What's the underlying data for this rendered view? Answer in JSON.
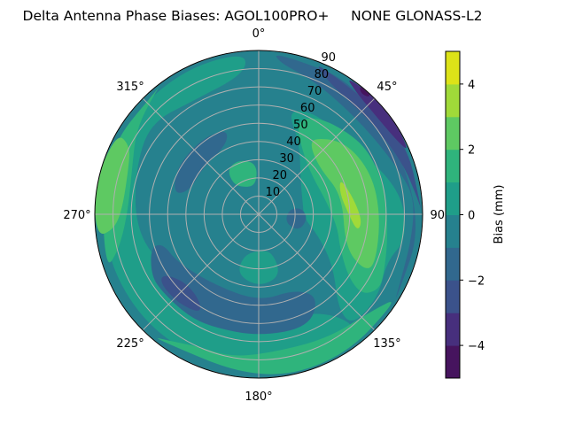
{
  "chart_data": {
    "type": "polar-contour",
    "title": "Delta Antenna Phase Biases: AGOL100PRO+     NONE GLONASS-L2",
    "angular_axis": {
      "direction": "clockwise",
      "zero": "north",
      "tick_labels": [
        "0°",
        "45°",
        "90°",
        "135°",
        "180°",
        "225°",
        "270°",
        "315°"
      ],
      "ticks": [
        0,
        45,
        90,
        135,
        180,
        225,
        270,
        315
      ]
    },
    "radial_axis": {
      "range": [
        0,
        90
      ],
      "ticks": [
        10,
        20,
        30,
        40,
        50,
        60,
        70,
        80,
        90
      ],
      "tick_labels": [
        "10",
        "20",
        "30",
        "40",
        "50",
        "60",
        "70",
        "80",
        "90"
      ]
    },
    "grid": true,
    "colorbar": {
      "label": "Bias (mm)",
      "levels": [
        -5,
        -4,
        -3,
        -2,
        -1,
        0,
        1,
        2,
        3,
        4,
        5
      ],
      "ticks": [
        -4,
        -2,
        0,
        2,
        4
      ],
      "tick_labels": [
        "−4",
        "−2",
        "0",
        "2",
        "4"
      ],
      "colormap": "viridis",
      "colors": [
        "#46145e",
        "#472f7d",
        "#3b528b",
        "#31688e",
        "#26818e",
        "#1f9e89",
        "#2fb47c",
        "#5ec962",
        "#a0da39",
        "#dde318"
      ]
    },
    "background_value": -0.5,
    "regions": [
      {
        "value": 0.5,
        "points": [
          [
            140,
            90
          ],
          [
            180,
            90
          ],
          [
            220,
            90
          ],
          [
            260,
            90
          ],
          [
            300,
            90
          ],
          [
            330,
            90
          ],
          [
            355,
            90
          ],
          [
            355,
            78
          ],
          [
            330,
            72
          ],
          [
            310,
            78
          ],
          [
            290,
            72
          ],
          [
            265,
            68
          ],
          [
            245,
            62
          ],
          [
            225,
            50
          ],
          [
            205,
            52
          ],
          [
            185,
            62
          ],
          [
            165,
            60
          ],
          [
            150,
            62
          ],
          [
            140,
            75
          ]
        ]
      },
      {
        "value": 0.5,
        "points": [
          [
            15,
            60
          ],
          [
            30,
            45
          ],
          [
            50,
            30
          ],
          [
            75,
            25
          ],
          [
            95,
            25
          ],
          [
            110,
            35
          ],
          [
            125,
            50
          ],
          [
            140,
            68
          ],
          [
            140,
            80
          ],
          [
            125,
            80
          ],
          [
            110,
            75
          ],
          [
            100,
            82
          ],
          [
            85,
            80
          ],
          [
            70,
            72
          ],
          [
            50,
            62
          ],
          [
            30,
            64
          ]
        ]
      },
      {
        "value": 1.5,
        "points": [
          [
            22,
            55
          ],
          [
            35,
            42
          ],
          [
            55,
            36
          ],
          [
            80,
            38
          ],
          [
            100,
            44
          ],
          [
            112,
            48
          ],
          [
            125,
            60
          ],
          [
            128,
            72
          ],
          [
            122,
            78
          ],
          [
            115,
            76
          ],
          [
            100,
            72
          ],
          [
            80,
            71
          ],
          [
            60,
            70
          ],
          [
            45,
            66
          ],
          [
            30,
            62
          ]
        ]
      },
      {
        "value": 1.5,
        "points": [
          [
            120,
            90
          ],
          [
            130,
            82
          ],
          [
            150,
            78
          ],
          [
            170,
            76
          ],
          [
            190,
            80
          ],
          [
            205,
            80
          ],
          [
            215,
            85
          ],
          [
            222,
            90
          ],
          [
            180,
            92
          ],
          [
            150,
            92
          ]
        ]
      },
      {
        "value": 1.5,
        "points": [
          [
            250,
            90
          ],
          [
            255,
            80
          ],
          [
            270,
            72
          ],
          [
            290,
            74
          ],
          [
            305,
            82
          ],
          [
            320,
            88
          ],
          [
            325,
            90
          ],
          [
            290,
            92
          ]
        ]
      },
      {
        "value": 2.5,
        "points": [
          [
            262,
            90
          ],
          [
            264,
            80
          ],
          [
            272,
            75
          ],
          [
            290,
            76
          ],
          [
            298,
            80
          ],
          [
            300,
            90
          ],
          [
            280,
            92
          ]
        ]
      },
      {
        "value": 2.5,
        "points": [
          [
            36,
            52
          ],
          [
            50,
            62
          ],
          [
            70,
            66
          ],
          [
            91,
            67
          ],
          [
            114,
            70
          ],
          [
            118,
            65
          ],
          [
            111,
            51
          ],
          [
            77,
            47
          ],
          [
            53,
            42
          ],
          [
            37,
            47
          ]
        ]
      },
      {
        "value": 3.5,
        "points": [
          [
            66,
            49
          ],
          [
            81,
            53
          ],
          [
            94,
            57
          ],
          [
            100,
            55
          ],
          [
            89,
            49
          ],
          [
            75,
            46
          ]
        ]
      },
      {
        "value": -1.5,
        "points": [
          [
            5,
            90
          ],
          [
            8,
            84
          ],
          [
            20,
            80
          ],
          [
            35,
            76
          ],
          [
            55,
            76
          ],
          [
            75,
            82
          ],
          [
            85,
            86
          ],
          [
            100,
            85
          ],
          [
            115,
            86
          ],
          [
            125,
            90
          ],
          [
            90,
            92
          ],
          [
            40,
            92
          ]
        ]
      },
      {
        "value": -2.5,
        "points": [
          [
            20,
            90
          ],
          [
            25,
            84
          ],
          [
            35,
            80
          ],
          [
            50,
            80
          ],
          [
            70,
            84
          ],
          [
            85,
            88
          ],
          [
            90,
            90
          ],
          [
            60,
            92
          ]
        ]
      },
      {
        "value": -3.5,
        "points": [
          [
            32,
            90
          ],
          [
            38,
            86
          ],
          [
            50,
            84
          ],
          [
            62,
            86
          ],
          [
            68,
            90
          ],
          [
            50,
            92
          ]
        ]
      },
      {
        "value": -4.5,
        "points": [
          [
            38,
            90
          ],
          [
            40,
            87
          ],
          [
            43,
            88
          ],
          [
            43,
            90
          ]
        ]
      },
      {
        "value": -1.5,
        "points": [
          [
            283,
            48
          ],
          [
            300,
            52
          ],
          [
            323,
            52
          ],
          [
            340,
            50
          ],
          [
            335,
            42
          ],
          [
            310,
            40
          ],
          [
            289,
            40
          ]
        ]
      },
      {
        "value": -1.5,
        "points": [
          [
            253,
            62
          ],
          [
            240,
            68
          ],
          [
            231,
            68
          ],
          [
            215,
            68
          ],
          [
            202,
            67
          ],
          [
            180,
            67
          ],
          [
            156,
            68
          ],
          [
            144,
            56
          ],
          [
            154,
            46
          ],
          [
            180,
            48
          ],
          [
            214,
            46
          ],
          [
            240,
            52
          ],
          [
            253,
            55
          ]
        ]
      },
      {
        "value": -2.5,
        "points": [
          [
            238,
            62
          ],
          [
            228,
            55
          ],
          [
            215,
            57
          ],
          [
            210,
            63
          ],
          [
            222,
            66
          ],
          [
            235,
            66
          ]
        ]
      },
      {
        "value": -1.5,
        "points": [
          [
            80,
            18
          ],
          [
            95,
            15
          ],
          [
            110,
            17
          ],
          [
            112,
            24
          ],
          [
            95,
            27
          ],
          [
            82,
            24
          ]
        ]
      },
      {
        "value": 1.5,
        "points": [
          [
            320,
            22
          ],
          [
            330,
            17
          ],
          [
            355,
            16
          ],
          [
            358,
            28
          ],
          [
            340,
            32
          ],
          [
            325,
            30
          ]
        ]
      },
      {
        "value": 0.5,
        "points": [
          [
            160,
            22
          ],
          [
            180,
            20
          ],
          [
            200,
            24
          ],
          [
            200,
            35
          ],
          [
            180,
            40
          ],
          [
            160,
            36
          ]
        ]
      }
    ]
  }
}
